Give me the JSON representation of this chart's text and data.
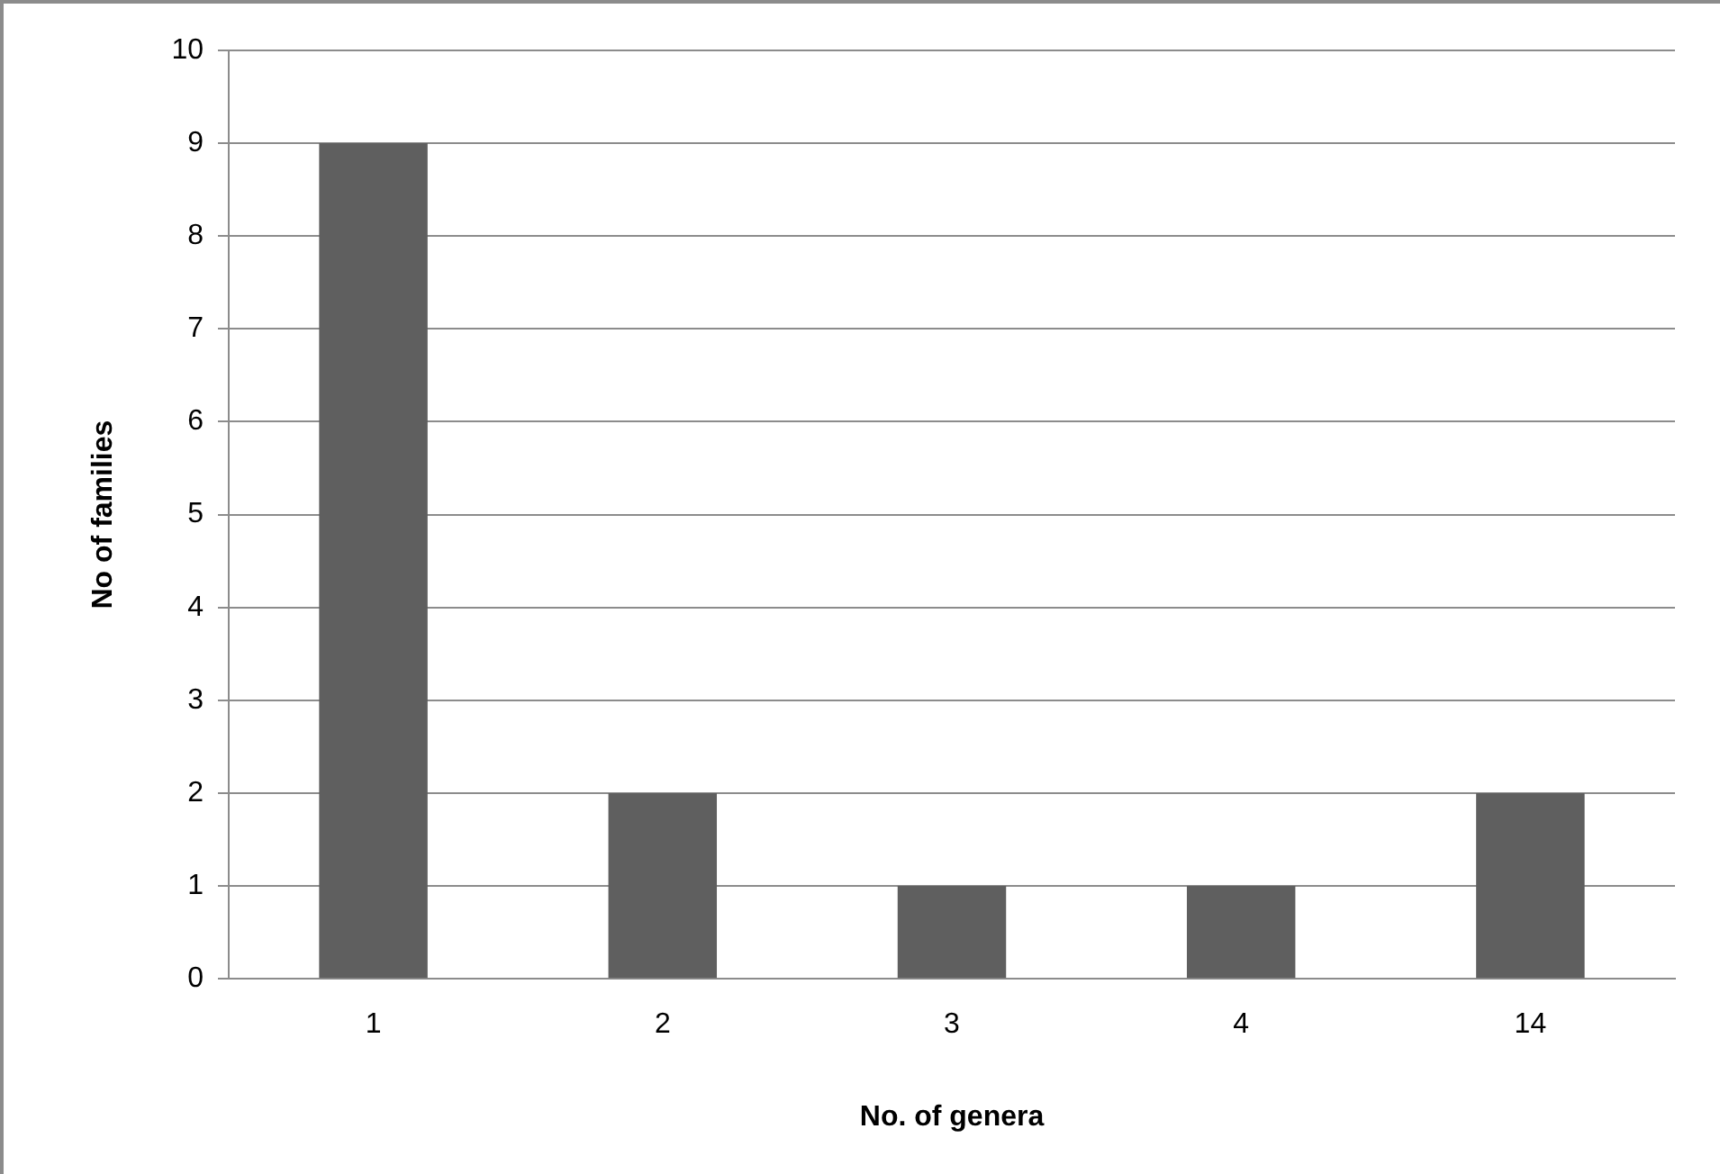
{
  "chart_data": {
    "type": "bar",
    "xlabel": "No. of genera",
    "ylabel": "No of families",
    "categories": [
      "1",
      "2",
      "3",
      "4",
      "14"
    ],
    "values": [
      9,
      2,
      1,
      1,
      2
    ],
    "color": "#5f5f5f",
    "ylim": [
      0,
      10
    ],
    "yticks": [
      0,
      1,
      2,
      3,
      4,
      5,
      6,
      7,
      8,
      9,
      10
    ],
    "grid": "y",
    "legend": false
  }
}
